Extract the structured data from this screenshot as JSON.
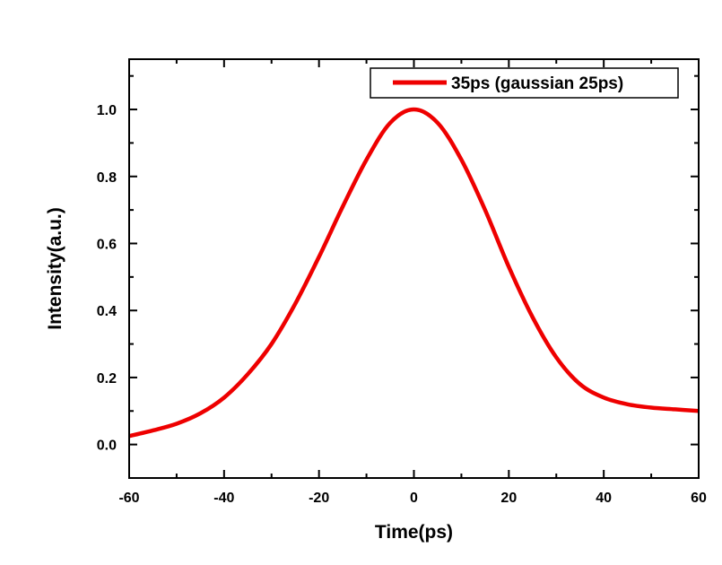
{
  "chart_data": {
    "type": "line",
    "xlabel": "Time(ps)",
    "ylabel": "Intensity(a.u.)",
    "xlim": [
      -60,
      60
    ],
    "ylim": [
      -0.1,
      1.15
    ],
    "xticks": [
      -60,
      -40,
      -20,
      0,
      20,
      40,
      60
    ],
    "xtick_labels": [
      "-60",
      "-40",
      "-20",
      "0",
      "20",
      "40",
      "60"
    ],
    "yticks": [
      0.0,
      0.2,
      0.4,
      0.6,
      0.8,
      1.0
    ],
    "ytick_labels": [
      "0.0",
      "0.2",
      "0.4",
      "0.6",
      "0.8",
      "1.0"
    ],
    "grid": false,
    "legend_position": "top-right",
    "series": [
      {
        "name": "35ps (gaussian 25ps)",
        "color": "#ee0000",
        "x": [
          -60,
          -55,
          -50,
          -45,
          -40,
          -35,
          -30,
          -25,
          -20,
          -15,
          -10,
          -5,
          0,
          5,
          10,
          15,
          20,
          25,
          30,
          35,
          40,
          45,
          50,
          55,
          60
        ],
        "y": [
          0.025,
          0.042,
          0.062,
          0.093,
          0.14,
          0.21,
          0.3,
          0.42,
          0.56,
          0.71,
          0.85,
          0.96,
          1.0,
          0.96,
          0.85,
          0.7,
          0.53,
          0.38,
          0.26,
          0.18,
          0.14,
          0.12,
          0.11,
          0.105,
          0.1
        ]
      }
    ]
  }
}
